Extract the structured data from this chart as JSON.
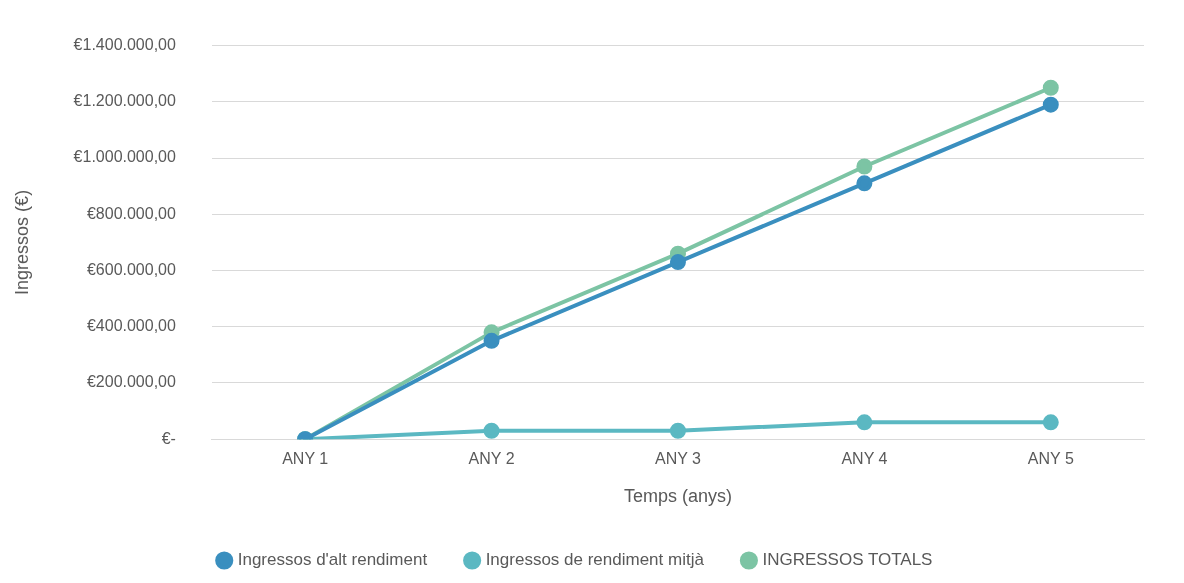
{
  "chart_data": {
    "type": "line",
    "xlabel": "Temps (anys)",
    "ylabel": "Ingressos (€)",
    "categories": [
      "ANY 1",
      "ANY 2",
      "ANY 3",
      "ANY 4",
      "ANY 5"
    ],
    "series": [
      {
        "name": "Ingressos d'alt rendiment",
        "color": "#3a8fbf",
        "values": [
          0,
          350000,
          630000,
          910000,
          1190000
        ]
      },
      {
        "name": "Ingressos de rendiment mitjà",
        "color": "#5bb8c2",
        "values": [
          0,
          30000,
          30000,
          60000,
          60000
        ]
      },
      {
        "name": "INGRESSOS TOTALS",
        "color": "#7cc4a4",
        "values": [
          0,
          380000,
          660000,
          970000,
          1250000
        ]
      }
    ],
    "ylim": [
      0,
      1400000
    ],
    "yticks": [
      {
        "value": 0,
        "label": "€-"
      },
      {
        "value": 200000,
        "label": "€200.000,00"
      },
      {
        "value": 400000,
        "label": "€400.000,00"
      },
      {
        "value": 600000,
        "label": "€600.000,00"
      },
      {
        "value": 800000,
        "label": "€800.000,00"
      },
      {
        "value": 1000000,
        "label": "€1.000.000,00"
      },
      {
        "value": 1200000,
        "label": "€1.200.000,00"
      },
      {
        "value": 1400000,
        "label": "€1.400.000,00"
      }
    ],
    "grid": "y",
    "legend": "bottom",
    "marker": "circle",
    "line_style": "solid"
  }
}
